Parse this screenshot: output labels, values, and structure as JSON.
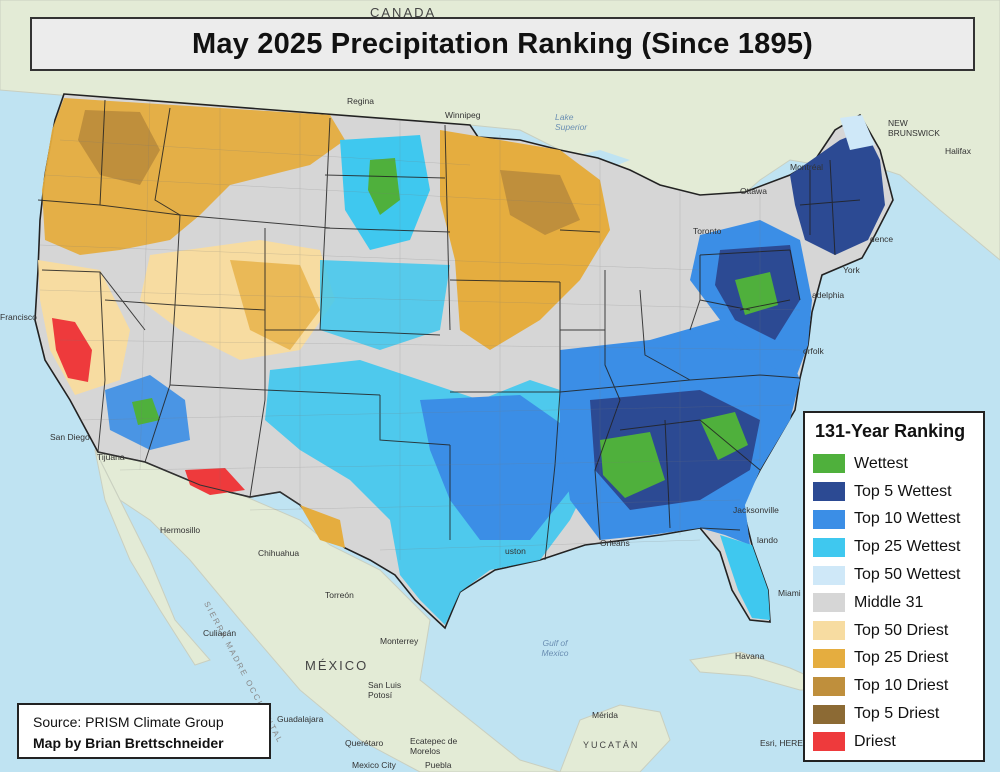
{
  "title": "May 2025 Precipitation Ranking (Since 1895)",
  "legend": {
    "title": "131-Year Ranking",
    "items": [
      {
        "label": "Wettest",
        "color": "#4fb03c"
      },
      {
        "label": "Top 5 Wettest",
        "color": "#2c4a93"
      },
      {
        "label": "Top 10 Wettest",
        "color": "#3b8ee6"
      },
      {
        "label": "Top 25 Wettest",
        "color": "#3fc8ef"
      },
      {
        "label": "Top 50 Wettest",
        "color": "#cfe8f8"
      },
      {
        "label": "Middle 31",
        "color": "#d6d6d6"
      },
      {
        "label": "Top 50 Driest",
        "color": "#f7dca1"
      },
      {
        "label": "Top 25 Driest",
        "color": "#e5ad3f"
      },
      {
        "label": "Top 10 Driest",
        "color": "#bf8f3c"
      },
      {
        "label": "Top 5 Driest",
        "color": "#8c6a34"
      },
      {
        "label": "Driest",
        "color": "#ee3a3c"
      }
    ]
  },
  "source": {
    "line1": "Source: PRISM Climate Group",
    "line2": "Map by Brian Brettschneider"
  },
  "basemap": {
    "water_color": "#bfe3f2",
    "land_color": "#e4ebd8",
    "labels": {
      "canada": "CANADA",
      "mexico": "MÉXICO",
      "gulf": "Gulf of Mexico",
      "regina": "Regina",
      "winnipeg": "Winnipeg",
      "montreal": "Montréal",
      "ottawa": "Ottawa",
      "toronto": "Toronto",
      "halifax": "Halifax",
      "new_brunswick": "NEW BRUNSWICK",
      "lake_superior": "Lake Superior",
      "hermosillo": "Hermosillo",
      "chihuahua": "Chihuahua",
      "torreon": "Torreón",
      "monterrey": "Monterrey",
      "culiacan": "Culiacán",
      "san_luis_potosi": "San Luis Potosí",
      "guadalajara": "Guadalajara",
      "queretaro": "Querétaro",
      "ecatepec": "Ecatepec de Morelos",
      "mexico_city": "Mexico City",
      "puebla": "Puebla",
      "merida": "Mérida",
      "yucatan": "YUCATÁN",
      "havana": "Havana",
      "tijuana": "Tijuana",
      "san_diego": "San Diego",
      "francisco": "Francisco",
      "houston": "uston",
      "new_orleans": "Orleans",
      "jacksonville": "Jacksonville",
      "orlando": "lando",
      "miami": "Miami",
      "norfolk": "orfolk",
      "philadelphia": "adelphia",
      "new_york": "York",
      "providence": "dence",
      "sierra_madre": "SIERRA MADRE OCCIDENTAL",
      "esri": "Esri, HERE"
    }
  }
}
